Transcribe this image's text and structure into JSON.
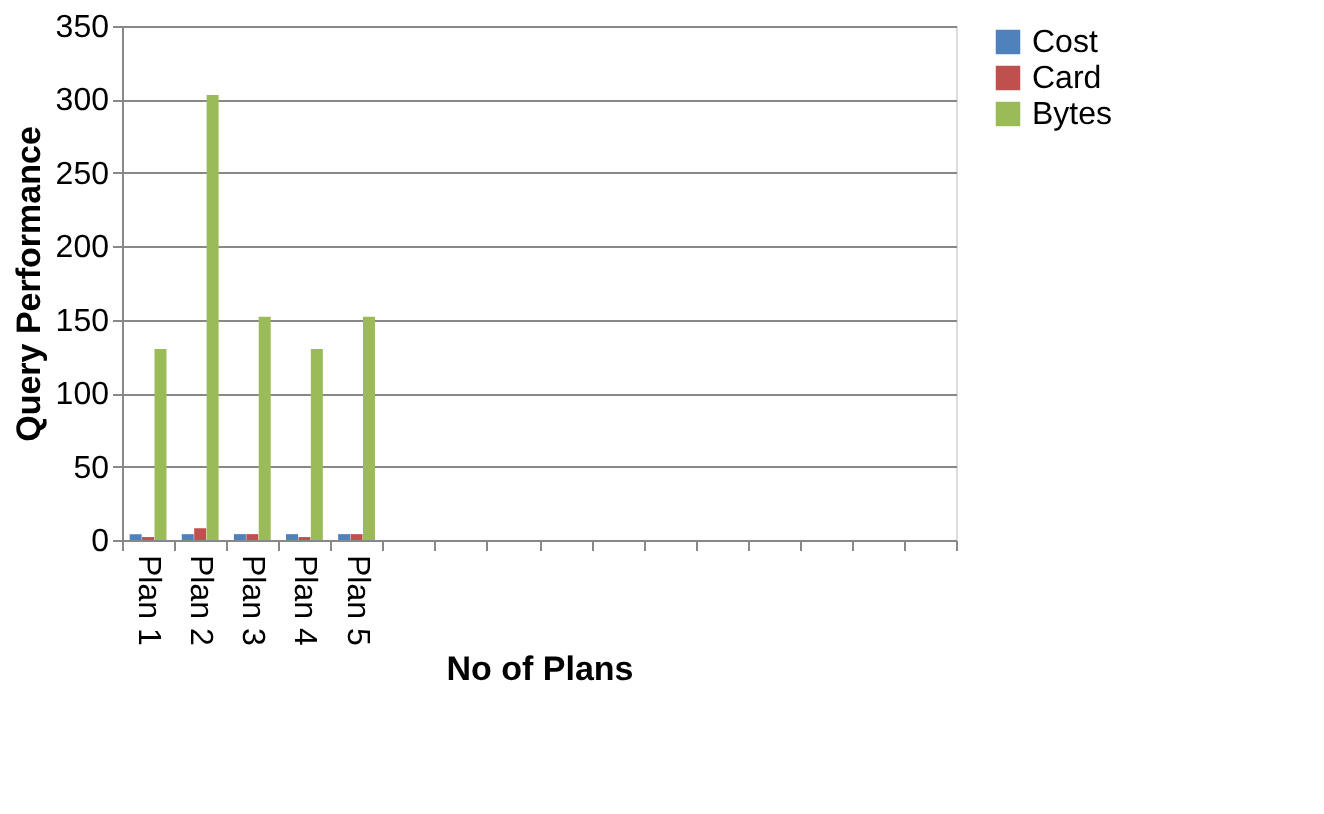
{
  "chart_data": {
    "type": "bar",
    "xlabel": "No of Plans",
    "ylabel": "Query Performance",
    "categories": [
      "Plan 1",
      "Plan 2",
      "Plan 3",
      "Plan 4",
      "Plan 5",
      null,
      null,
      null,
      null,
      null,
      null,
      null,
      null,
      null,
      null,
      null
    ],
    "series": [
      {
        "name": "Cost",
        "color": "#4f81bd",
        "values": [
          4,
          4,
          4,
          4,
          4,
          null,
          null,
          null,
          null,
          null,
          null,
          null,
          null,
          null,
          null,
          null
        ]
      },
      {
        "name": "Card",
        "color": "#c0504d",
        "values": [
          2,
          8,
          4,
          2,
          4,
          null,
          null,
          null,
          null,
          null,
          null,
          null,
          null,
          null,
          null,
          null
        ]
      },
      {
        "name": "Bytes",
        "color": "#9bbb59",
        "values": [
          130,
          303,
          152,
          130,
          152,
          null,
          null,
          null,
          null,
          null,
          null,
          null,
          null,
          null,
          null,
          null
        ]
      }
    ],
    "ylim": [
      0,
      350
    ],
    "yticks": [
      0,
      50,
      100,
      150,
      200,
      250,
      300,
      350
    ],
    "grid": "y",
    "legend": "right"
  }
}
